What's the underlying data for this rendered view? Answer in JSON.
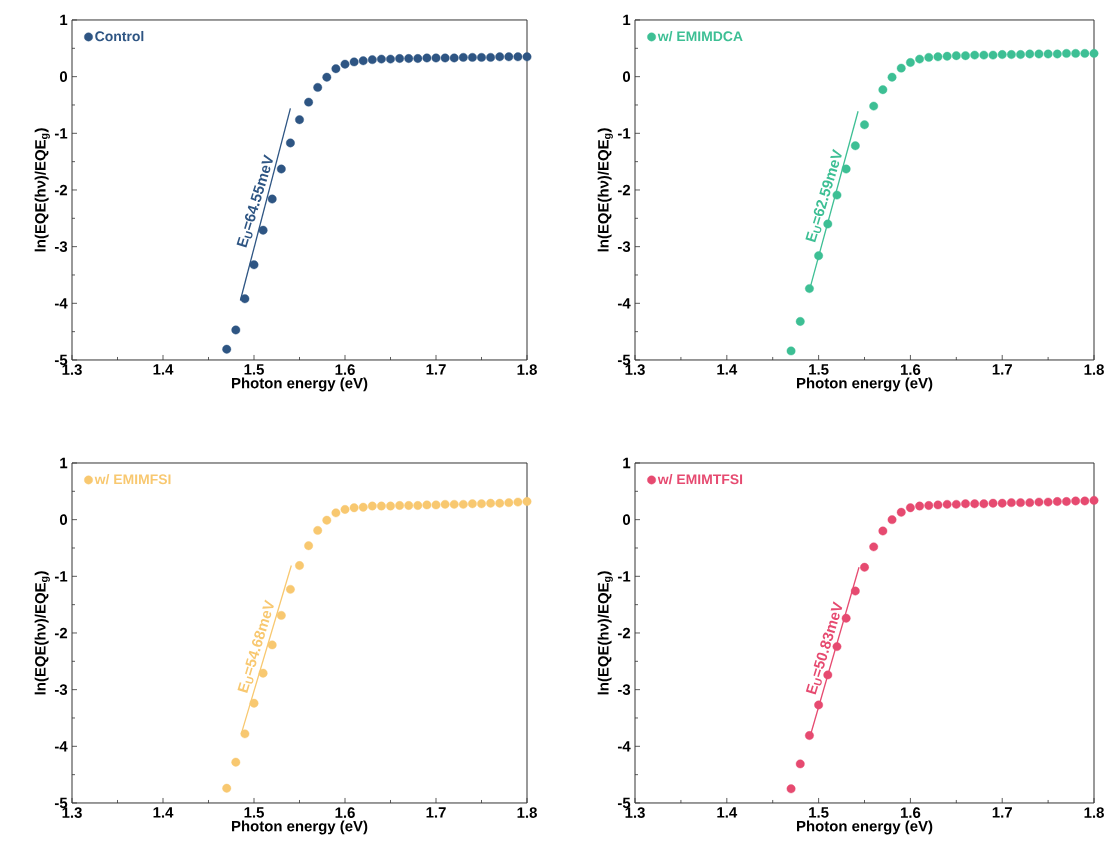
{
  "chart_data": [
    {
      "type": "scatter",
      "xlabel": "Photon energy (eV)",
      "ylabel": "ln(EQE(hν)/EQE$_{g}$)",
      "xlim": [
        1.3,
        1.8
      ],
      "ylim": [
        -5,
        1
      ],
      "xticks": [
        1.3,
        1.4,
        1.5,
        1.6,
        1.7,
        1.8
      ],
      "yticks": [
        -5,
        -4,
        -3,
        -2,
        -1,
        0,
        1
      ],
      "legend": "top left",
      "annotations": [
        "E$_{U}$=64.55meV"
      ],
      "series": [
        {
          "name": "Control",
          "marker": "circle",
          "color": "#2e5583",
          "x": [
            1.47,
            1.48,
            1.49,
            1.5,
            1.51,
            1.52,
            1.53,
            1.54,
            1.55,
            1.56,
            1.57,
            1.58,
            1.59,
            1.6,
            1.61,
            1.62,
            1.63,
            1.64,
            1.65,
            1.66,
            1.67,
            1.68,
            1.69,
            1.7,
            1.71,
            1.72,
            1.73,
            1.74,
            1.75,
            1.76,
            1.77,
            1.78,
            1.79,
            1.8
          ],
          "values": [
            -4.81,
            -4.47,
            -3.92,
            -3.32,
            -2.71,
            -2.16,
            -1.63,
            -1.17,
            -0.76,
            -0.45,
            -0.19,
            -0.01,
            0.14,
            0.22,
            0.26,
            0.28,
            0.3,
            0.31,
            0.31,
            0.32,
            0.32,
            0.32,
            0.33,
            0.33,
            0.33,
            0.33,
            0.34,
            0.34,
            0.34,
            0.34,
            0.35,
            0.35,
            0.35,
            0.35
          ]
        },
        {
          "type": "line",
          "marker": "none",
          "color": "#2e5583",
          "x": [
            1.485,
            1.54
          ],
          "values": [
            -3.95,
            -0.56
          ]
        }
      ]
    },
    {
      "type": "scatter",
      "xlabel": "Photon energy (eV)",
      "ylabel": "ln(EQE(hν)/EQE$_{g}$)",
      "xlim": [
        1.3,
        1.8
      ],
      "ylim": [
        -5,
        1
      ],
      "xticks": [
        1.3,
        1.4,
        1.5,
        1.6,
        1.7,
        1.8
      ],
      "yticks": [
        -5,
        -4,
        -3,
        -2,
        -1,
        0,
        1
      ],
      "legend": "top left",
      "annotations": [
        "E$_{U}$=62.59meV"
      ],
      "series": [
        {
          "name": "w/ EMIMDCA",
          "marker": "circle",
          "color": "#3dbf94",
          "x": [
            1.47,
            1.48,
            1.49,
            1.5,
            1.51,
            1.52,
            1.53,
            1.54,
            1.55,
            1.56,
            1.57,
            1.58,
            1.59,
            1.6,
            1.61,
            1.62,
            1.63,
            1.64,
            1.65,
            1.66,
            1.67,
            1.68,
            1.69,
            1.7,
            1.71,
            1.72,
            1.73,
            1.74,
            1.75,
            1.76,
            1.77,
            1.78,
            1.79,
            1.8
          ],
          "values": [
            -4.84,
            -4.32,
            -3.74,
            -3.16,
            -2.6,
            -2.09,
            -1.63,
            -1.22,
            -0.85,
            -0.52,
            -0.23,
            -0.01,
            0.15,
            0.25,
            0.31,
            0.34,
            0.35,
            0.36,
            0.37,
            0.37,
            0.38,
            0.38,
            0.38,
            0.39,
            0.39,
            0.39,
            0.4,
            0.4,
            0.4,
            0.4,
            0.41,
            0.41,
            0.41,
            0.41
          ]
        },
        {
          "type": "line",
          "marker": "none",
          "color": "#3dbf94",
          "x": [
            1.491,
            1.543
          ],
          "values": [
            -3.71,
            -0.61
          ]
        }
      ]
    },
    {
      "type": "scatter",
      "xlabel": "Photon energy (eV)",
      "ylabel": "ln(EQE(hν)/EQE$_{g}$)",
      "xlim": [
        1.3,
        1.8
      ],
      "ylim": [
        -5,
        1
      ],
      "xticks": [
        1.3,
        1.4,
        1.5,
        1.6,
        1.7,
        1.8
      ],
      "yticks": [
        -5,
        -4,
        -3,
        -2,
        -1,
        0,
        1
      ],
      "legend": "top left",
      "annotations": [
        "E$_{U}$=54.68meV"
      ],
      "series": [
        {
          "name": "w/ EMIMFSI",
          "marker": "circle",
          "color": "#f8c870",
          "x": [
            1.47,
            1.48,
            1.49,
            1.5,
            1.51,
            1.52,
            1.53,
            1.54,
            1.55,
            1.56,
            1.57,
            1.58,
            1.59,
            1.6,
            1.61,
            1.62,
            1.63,
            1.64,
            1.65,
            1.66,
            1.67,
            1.68,
            1.69,
            1.7,
            1.71,
            1.72,
            1.73,
            1.74,
            1.75,
            1.76,
            1.77,
            1.78,
            1.79,
            1.8
          ],
          "values": [
            -4.74,
            -4.28,
            -3.78,
            -3.24,
            -2.71,
            -2.21,
            -1.69,
            -1.23,
            -0.81,
            -0.46,
            -0.19,
            -0.01,
            0.12,
            0.18,
            0.21,
            0.22,
            0.24,
            0.24,
            0.24,
            0.25,
            0.25,
            0.25,
            0.26,
            0.26,
            0.27,
            0.27,
            0.27,
            0.28,
            0.28,
            0.29,
            0.29,
            0.3,
            0.31,
            0.32
          ]
        },
        {
          "type": "line",
          "marker": "none",
          "color": "#f8c870",
          "x": [
            1.486,
            1.541
          ],
          "values": [
            -3.78,
            -0.81
          ]
        }
      ]
    },
    {
      "type": "scatter",
      "xlabel": "Photon energy (eV)",
      "ylabel": "ln(EQE(hν)/EQE$_{g}$)",
      "xlim": [
        1.3,
        1.8
      ],
      "ylim": [
        -5,
        1
      ],
      "xticks": [
        1.3,
        1.4,
        1.5,
        1.6,
        1.7,
        1.8
      ],
      "yticks": [
        -5,
        -4,
        -3,
        -2,
        -1,
        0,
        1
      ],
      "legend": "top left",
      "annotations": [
        "E$_{U}$=50.83meV"
      ],
      "series": [
        {
          "name": "w/ EMIMTFSI",
          "marker": "circle",
          "color": "#e64a70",
          "x": [
            1.47,
            1.48,
            1.49,
            1.5,
            1.51,
            1.52,
            1.53,
            1.54,
            1.55,
            1.56,
            1.57,
            1.58,
            1.59,
            1.6,
            1.61,
            1.62,
            1.63,
            1.64,
            1.65,
            1.66,
            1.67,
            1.68,
            1.69,
            1.7,
            1.71,
            1.72,
            1.73,
            1.74,
            1.75,
            1.76,
            1.77,
            1.78,
            1.79,
            1.8
          ],
          "values": [
            -4.75,
            -4.31,
            -3.81,
            -3.27,
            -2.74,
            -2.24,
            -1.74,
            -1.26,
            -0.84,
            -0.48,
            -0.2,
            0.0,
            0.13,
            0.21,
            0.24,
            0.25,
            0.26,
            0.27,
            0.27,
            0.28,
            0.28,
            0.28,
            0.29,
            0.29,
            0.3,
            0.3,
            0.3,
            0.31,
            0.31,
            0.32,
            0.32,
            0.33,
            0.33,
            0.34
          ]
        },
        {
          "type": "line",
          "marker": "none",
          "color": "#e64a70",
          "x": [
            1.491,
            1.544
          ],
          "values": [
            -3.81,
            -0.84
          ]
        }
      ]
    }
  ]
}
